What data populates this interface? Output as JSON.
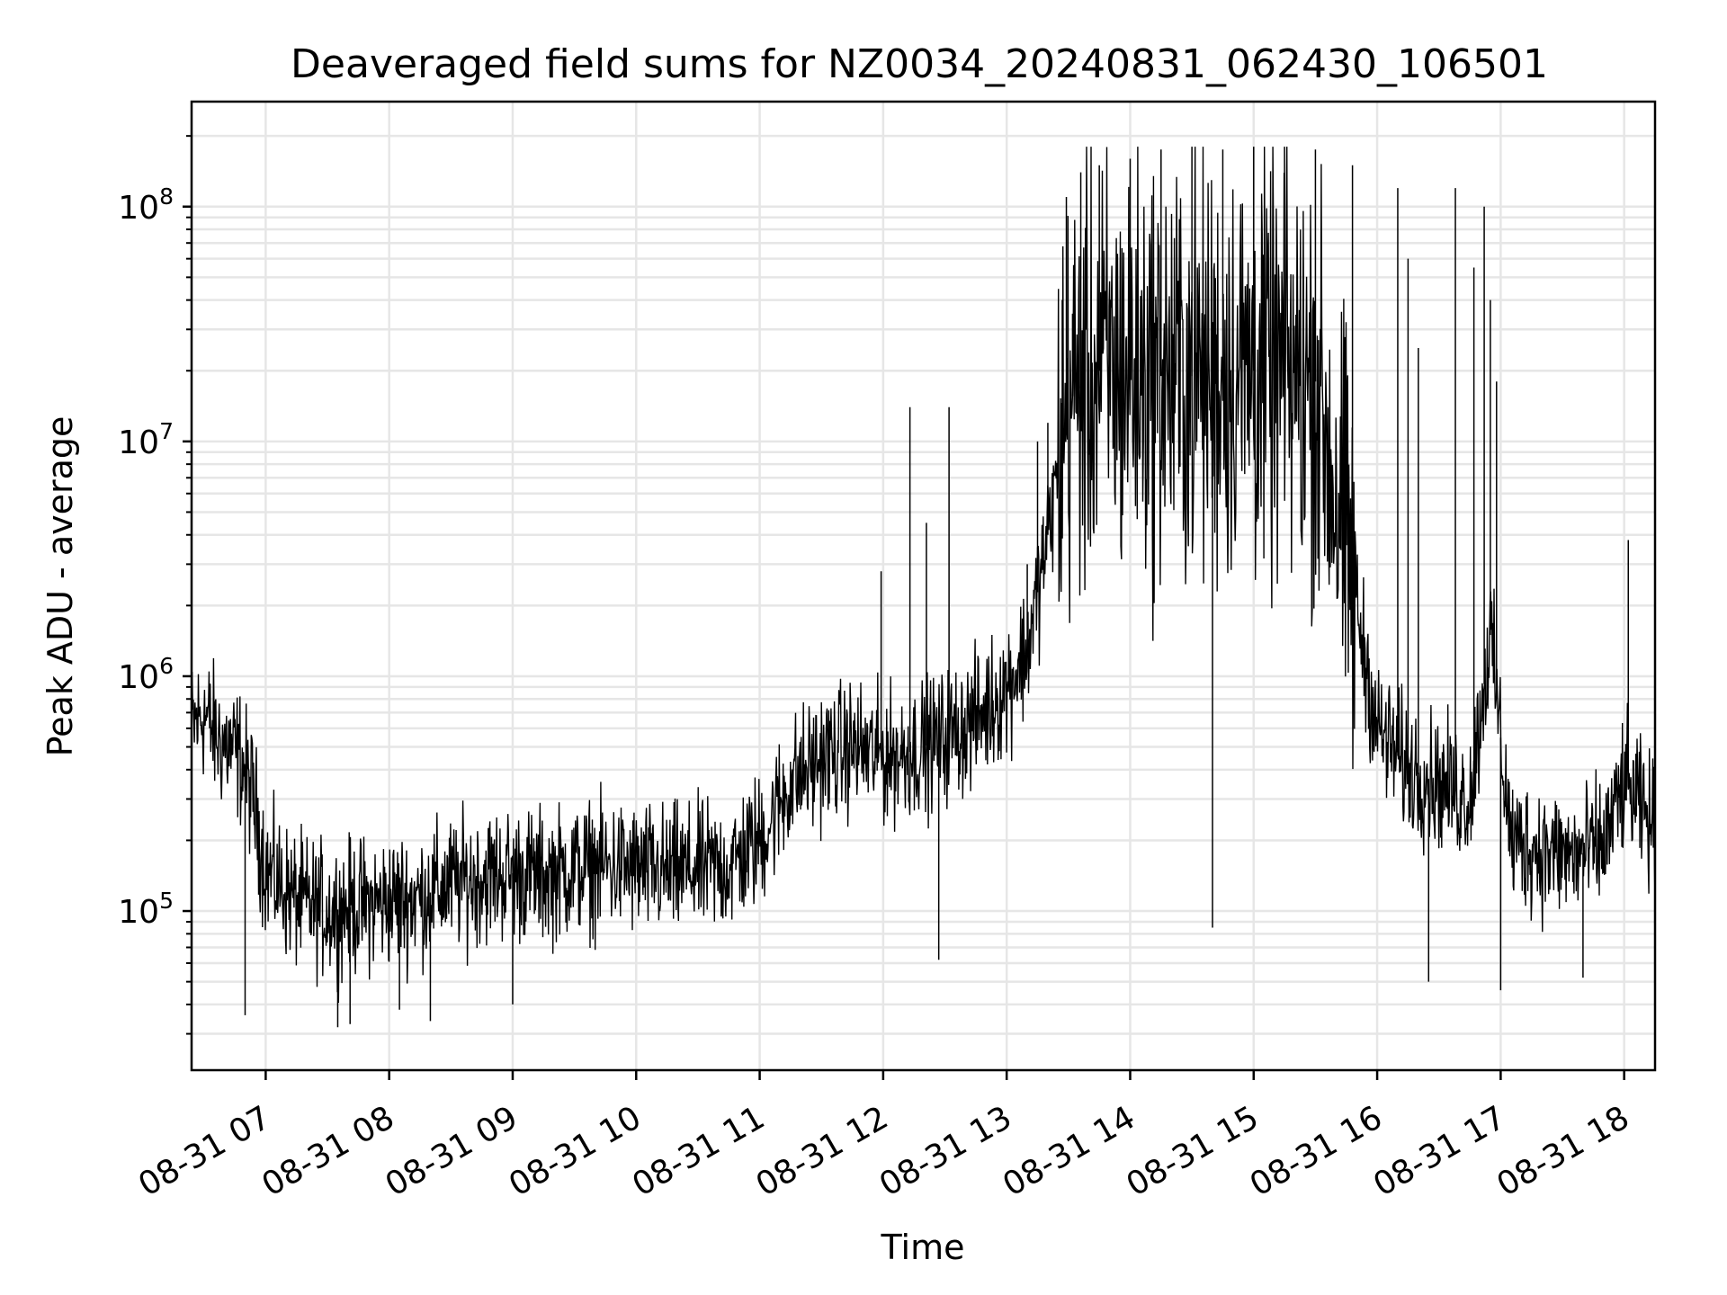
{
  "chart_data": {
    "type": "line",
    "title": "Deaveraged field sums for NZ0034_20240831_062430_106501",
    "xlabel": "Time",
    "ylabel": "Peak ADU - average",
    "yscale": "log",
    "ylim": [
      21000,
      280000000
    ],
    "xlim": [
      "2024-08-31 06:24",
      "2024-08-31 18:15"
    ],
    "grid": "major and minor",
    "line_color": "#000000",
    "x_ticks": [
      {
        "t": "2024-08-31 07:00",
        "label": "08-31 07"
      },
      {
        "t": "2024-08-31 08:00",
        "label": "08-31 08"
      },
      {
        "t": "2024-08-31 09:00",
        "label": "08-31 09"
      },
      {
        "t": "2024-08-31 10:00",
        "label": "08-31 10"
      },
      {
        "t": "2024-08-31 11:00",
        "label": "08-31 11"
      },
      {
        "t": "2024-08-31 12:00",
        "label": "08-31 12"
      },
      {
        "t": "2024-08-31 13:00",
        "label": "08-31 13"
      },
      {
        "t": "2024-08-31 14:00",
        "label": "08-31 14"
      },
      {
        "t": "2024-08-31 15:00",
        "label": "08-31 15"
      },
      {
        "t": "2024-08-31 16:00",
        "label": "08-31 16"
      },
      {
        "t": "2024-08-31 17:00",
        "label": "08-31 17"
      },
      {
        "t": "2024-08-31 18:00",
        "label": "08-31 18"
      }
    ],
    "y_ticks": [
      {
        "value": 100000,
        "base": "10",
        "exp": "5"
      },
      {
        "value": 1000000,
        "base": "10",
        "exp": "6"
      },
      {
        "value": 10000000,
        "base": "10",
        "exp": "7"
      },
      {
        "value": 100000000,
        "base": "10",
        "exp": "8"
      }
    ],
    "series": [
      {
        "x": [
          "2024-08-31 06:24",
          "2024-08-31 06:30",
          "2024-08-31 06:36",
          "2024-08-31 06:42",
          "2024-08-31 06:48",
          "2024-08-31 06:54",
          "2024-08-31 07:00",
          "2024-08-31 07:15",
          "2024-08-31 07:30",
          "2024-08-31 07:45",
          "2024-08-31 08:00",
          "2024-08-31 08:15",
          "2024-08-31 08:30",
          "2024-08-31 08:45",
          "2024-08-31 09:00",
          "2024-08-31 09:15",
          "2024-08-31 09:30",
          "2024-08-31 09:45",
          "2024-08-31 10:00",
          "2024-08-31 10:15",
          "2024-08-31 10:30",
          "2024-08-31 10:45",
          "2024-08-31 11:00",
          "2024-08-31 11:15",
          "2024-08-31 11:30",
          "2024-08-31 11:45",
          "2024-08-31 12:00",
          "2024-08-31 12:15",
          "2024-08-31 12:30",
          "2024-08-31 12:45",
          "2024-08-31 13:00",
          "2024-08-31 13:10",
          "2024-08-31 13:20",
          "2024-08-31 13:30",
          "2024-08-31 13:45",
          "2024-08-31 14:00",
          "2024-08-31 14:15",
          "2024-08-31 14:30",
          "2024-08-31 14:45",
          "2024-08-31 15:00",
          "2024-08-31 15:15",
          "2024-08-31 15:30",
          "2024-08-31 15:45",
          "2024-08-31 16:00",
          "2024-08-31 16:15",
          "2024-08-31 16:30",
          "2024-08-31 16:45",
          "2024-08-31 16:55",
          "2024-08-31 17:05",
          "2024-08-31 17:20",
          "2024-08-31 17:35",
          "2024-08-31 17:50",
          "2024-08-31 18:00",
          "2024-08-31 18:15"
        ],
        "y": [
          600000,
          700000,
          550000,
          500000,
          450000,
          300000,
          150000,
          110000,
          100000,
          105000,
          110000,
          115000,
          130000,
          140000,
          145000,
          140000,
          150000,
          155000,
          150000,
          145000,
          150000,
          155000,
          200000,
          350000,
          450000,
          500000,
          450000,
          480000,
          550000,
          650000,
          900000,
          1300000,
          4000000,
          15000000,
          20000000,
          20000000,
          19000000,
          19000000,
          20000000,
          20000000,
          19000000,
          18000000,
          3500000,
          600000,
          400000,
          350000,
          300000,
          1500000,
          200000,
          180000,
          170000,
          190000,
          350000,
          220000
        ]
      }
    ],
    "spikes": [
      {
        "t": "2024-08-31 11:59",
        "value": 2800000
      },
      {
        "t": "2024-08-31 12:13",
        "value": 14000000
      },
      {
        "t": "2024-08-31 12:21",
        "value": 4500000
      },
      {
        "t": "2024-08-31 12:32",
        "value": 14000000
      },
      {
        "t": "2024-08-31 13:10",
        "value": 3000000
      },
      {
        "t": "2024-08-31 13:15",
        "value": 10000000
      },
      {
        "t": "2024-08-31 13:20",
        "value": 12000000
      },
      {
        "t": "2024-08-31 13:27",
        "value": 40000000
      },
      {
        "t": "2024-08-31 13:29",
        "value": 110000000
      },
      {
        "t": "2024-08-31 13:32",
        "value": 35000000
      },
      {
        "t": "2024-08-31 13:36",
        "value": 140000000
      },
      {
        "t": "2024-08-31 13:45",
        "value": 150000000
      },
      {
        "t": "2024-08-31 14:00",
        "value": 160000000
      },
      {
        "t": "2024-08-31 14:15",
        "value": 175000000
      },
      {
        "t": "2024-08-31 14:30",
        "value": 180000000
      },
      {
        "t": "2024-08-31 14:45",
        "value": 175000000
      },
      {
        "t": "2024-08-31 15:00",
        "value": 180000000
      },
      {
        "t": "2024-08-31 15:15",
        "value": 180000000
      },
      {
        "t": "2024-08-31 15:30",
        "value": 175000000
      },
      {
        "t": "2024-08-31 15:48",
        "value": 150000000
      },
      {
        "t": "2024-08-31 16:10",
        "value": 120000000
      },
      {
        "t": "2024-08-31 16:15",
        "value": 60000000
      },
      {
        "t": "2024-08-31 16:20",
        "value": 25000000
      },
      {
        "t": "2024-08-31 16:38",
        "value": 120000000
      },
      {
        "t": "2024-08-31 16:47",
        "value": 55000000
      },
      {
        "t": "2024-08-31 16:52",
        "value": 100000000
      },
      {
        "t": "2024-08-31 16:55",
        "value": 40000000
      },
      {
        "t": "2024-08-31 16:58",
        "value": 18000000
      },
      {
        "t": "2024-08-31 18:02",
        "value": 3800000
      }
    ],
    "dips": [
      {
        "t": "2024-08-31 06:50",
        "value": 36000
      },
      {
        "t": "2024-08-31 07:35",
        "value": 32000
      },
      {
        "t": "2024-08-31 07:41",
        "value": 33000
      },
      {
        "t": "2024-08-31 08:05",
        "value": 38000
      },
      {
        "t": "2024-08-31 08:20",
        "value": 34000
      },
      {
        "t": "2024-08-31 09:00",
        "value": 40000
      },
      {
        "t": "2024-08-31 12:27",
        "value": 62000
      },
      {
        "t": "2024-08-31 14:40",
        "value": 85000
      },
      {
        "t": "2024-08-31 16:25",
        "value": 50000
      },
      {
        "t": "2024-08-31 17:00",
        "value": 46000
      },
      {
        "t": "2024-08-31 17:40",
        "value": 52000
      }
    ]
  }
}
